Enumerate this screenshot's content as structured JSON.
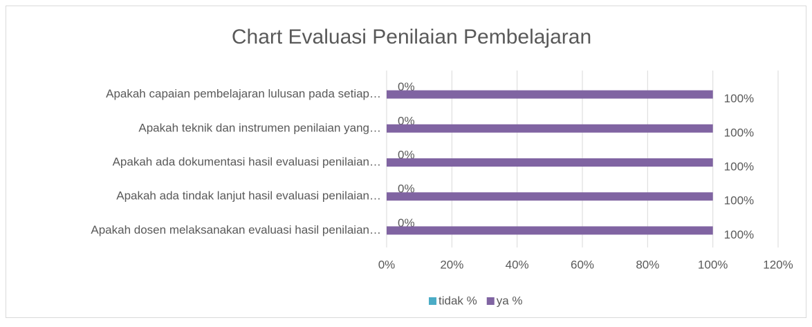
{
  "chart_data": {
    "type": "hbar",
    "title": "Chart Evaluasi Penilaian Pembelajaran",
    "categories": [
      "Apakah capaian pembelajaran lulusan pada setiap…",
      "Apakah teknik dan instrumen penilaian yang…",
      "Apakah ada dokumentasi hasil evaluasi penilaian…",
      "Apakah ada tindak lanjut hasil evaluasi penilaian…",
      "Apakah dosen melaksanakan evaluasi hasil penilaian…"
    ],
    "series": [
      {
        "name": "tidak %",
        "color": "#4bacc6",
        "values": [
          0,
          0,
          0,
          0,
          0
        ],
        "value_labels": [
          "0%",
          "0%",
          "0%",
          "0%",
          "0%"
        ]
      },
      {
        "name": "ya %",
        "color": "#8064a2",
        "values": [
          100,
          100,
          100,
          100,
          100
        ],
        "value_labels": [
          "100%",
          "100%",
          "100%",
          "100%",
          "100%"
        ]
      }
    ],
    "xlim": [
      0,
      120
    ],
    "xticks": [
      {
        "value": 0,
        "label": "0%"
      },
      {
        "value": 20,
        "label": "20%"
      },
      {
        "value": 40,
        "label": "40%"
      },
      {
        "value": 60,
        "label": "60%"
      },
      {
        "value": 80,
        "label": "80%"
      },
      {
        "value": 100,
        "label": "100%"
      },
      {
        "value": 120,
        "label": "120%"
      }
    ],
    "grid": true,
    "legend": "bottom"
  }
}
